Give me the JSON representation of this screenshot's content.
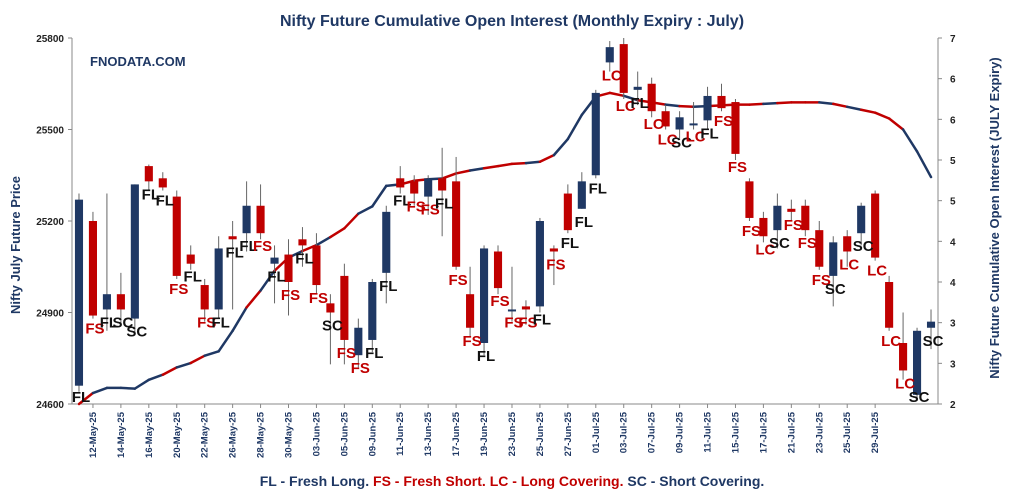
{
  "chart_data": {
    "type": "candlestick+line",
    "title": "Nifty Future Cumulative Open Interest (Monthly Expiry : July)",
    "watermark": "FNODATA.COM",
    "ylabel_left": "Nifty July Future Price",
    "ylabel_right": "Nifty Future Cumulative Open Interest (JULY Expiry)",
    "ylim_left": [
      24600,
      25800
    ],
    "yticks_left": [
      "24600",
      "24900",
      "25200",
      "25500",
      "25800"
    ],
    "ylim_right": [
      2,
      7
    ],
    "yticks_right": [
      "2",
      "3",
      "3",
      "4",
      "4",
      "5",
      "5",
      "6",
      "6",
      "7"
    ],
    "xtick_labels": [
      "12-May-25",
      "14-May-25",
      "16-May-25",
      "20-May-25",
      "22-May-25",
      "26-May-25",
      "28-May-25",
      "30-May-25",
      "03-Jun-25",
      "05-Jun-25",
      "09-Jun-25",
      "11-Jun-25",
      "13-Jun-25",
      "17-Jun-25",
      "19-Jun-25",
      "23-Jun-25",
      "25-Jun-25",
      "27-Jun-25",
      "01-Jul-25",
      "03-Jul-25",
      "07-Jul-25",
      "09-Jul-25",
      "11-Jul-25",
      "15-Jul-25",
      "17-Jul-25",
      "21-Jul-25",
      "23-Jul-25",
      "25-Jul-25",
      "29-Jul-25"
    ],
    "candles": [
      {
        "o": 24660,
        "h": 25290,
        "l": 24640,
        "c": 25270,
        "tag": "FL"
      },
      {
        "o": 25200,
        "h": 25230,
        "l": 24880,
        "c": 24890,
        "tag": "FS"
      },
      {
        "o": 24910,
        "h": 25290,
        "l": 24840,
        "c": 24960,
        "tag": "FL"
      },
      {
        "o": 24960,
        "h": 25030,
        "l": 24860,
        "c": 24910,
        "tag": "SC"
      },
      {
        "o": 24880,
        "h": 25320,
        "l": 24830,
        "c": 25320,
        "tag": "SC"
      },
      {
        "o": 25380,
        "h": 25385,
        "l": 25300,
        "c": 25330,
        "tag": "FL"
      },
      {
        "o": 25340,
        "h": 25360,
        "l": 25300,
        "c": 25310,
        "tag": "FL"
      },
      {
        "o": 25280,
        "h": 25300,
        "l": 25010,
        "c": 25020,
        "tag": "FS"
      },
      {
        "o": 25090,
        "h": 25120,
        "l": 25040,
        "c": 25060,
        "tag": "FL"
      },
      {
        "o": 24990,
        "h": 25010,
        "l": 24870,
        "c": 24910,
        "tag": "FS"
      },
      {
        "o": 24910,
        "h": 25150,
        "l": 24880,
        "c": 25110,
        "tag": "FL"
      },
      {
        "o": 25150,
        "h": 25200,
        "l": 24910,
        "c": 25140,
        "tag": "FL"
      },
      {
        "o": 25160,
        "h": 25330,
        "l": 25100,
        "c": 25250,
        "tag": "FL"
      },
      {
        "o": 25250,
        "h": 25320,
        "l": 25140,
        "c": 25160,
        "tag": "FS"
      },
      {
        "o": 25060,
        "h": 25120,
        "l": 24930,
        "c": 25080,
        "tag": "FL"
      },
      {
        "o": 25090,
        "h": 25140,
        "l": 24890,
        "c": 25000,
        "tag": "FS"
      },
      {
        "o": 25140,
        "h": 25180,
        "l": 25050,
        "c": 25120,
        "tag": "FL"
      },
      {
        "o": 25120,
        "h": 25160,
        "l": 24960,
        "c": 24990,
        "tag": "FS"
      },
      {
        "o": 24930,
        "h": 24960,
        "l": 24730,
        "c": 24900,
        "tag": "SC"
      },
      {
        "o": 25020,
        "h": 25060,
        "l": 24730,
        "c": 24810,
        "tag": "FS"
      },
      {
        "o": 24760,
        "h": 24880,
        "l": 24720,
        "c": 24850,
        "tag": "FS"
      },
      {
        "o": 24810,
        "h": 25010,
        "l": 24770,
        "c": 25000,
        "tag": "FL"
      },
      {
        "o": 25030,
        "h": 25250,
        "l": 24930,
        "c": 25230,
        "tag": "FL"
      },
      {
        "o": 25340,
        "h": 25380,
        "l": 25290,
        "c": 25310,
        "tag": "FL"
      },
      {
        "o": 25330,
        "h": 25350,
        "l": 25250,
        "c": 25290,
        "tag": "FS"
      },
      {
        "o": 25280,
        "h": 25350,
        "l": 25220,
        "c": 25340,
        "tag": "FS"
      },
      {
        "o": 25340,
        "h": 25440,
        "l": 25150,
        "c": 25300,
        "tag": "FL"
      },
      {
        "o": 25330,
        "h": 25410,
        "l": 25040,
        "c": 25050,
        "tag": "FS"
      },
      {
        "o": 24960,
        "h": 25050,
        "l": 24820,
        "c": 24850,
        "tag": "FS"
      },
      {
        "o": 24800,
        "h": 25120,
        "l": 24760,
        "c": 25110,
        "tag": "FL"
      },
      {
        "o": 25100,
        "h": 25120,
        "l": 24960,
        "c": 24980,
        "tag": "FS"
      },
      {
        "o": 24910,
        "h": 25050,
        "l": 24870,
        "c": 24910,
        "tag": "FS"
      },
      {
        "o": 24920,
        "h": 24940,
        "l": 24860,
        "c": 24910,
        "tag": "FS"
      },
      {
        "o": 24920,
        "h": 25210,
        "l": 24900,
        "c": 25200,
        "tag": "FL"
      },
      {
        "o": 25110,
        "h": 25120,
        "l": 24990,
        "c": 25100,
        "tag": "FS"
      },
      {
        "o": 25290,
        "h": 25320,
        "l": 25160,
        "c": 25170,
        "tag": "FL"
      },
      {
        "o": 25240,
        "h": 25360,
        "l": 25240,
        "c": 25330,
        "tag": "FL"
      },
      {
        "o": 25350,
        "h": 25630,
        "l": 25340,
        "c": 25620,
        "tag": "FL"
      },
      {
        "o": 25720,
        "h": 25790,
        "l": 25690,
        "c": 25770,
        "tag": "LC"
      },
      {
        "o": 25780,
        "h": 25800,
        "l": 25600,
        "c": 25620,
        "tag": "LC"
      },
      {
        "o": 25630,
        "h": 25690,
        "l": 25580,
        "c": 25640,
        "tag": "FL"
      },
      {
        "o": 25650,
        "h": 25670,
        "l": 25540,
        "c": 25560,
        "tag": "LC"
      },
      {
        "o": 25560,
        "h": 25580,
        "l": 25500,
        "c": 25510,
        "tag": "LC"
      },
      {
        "o": 25500,
        "h": 25560,
        "l": 25470,
        "c": 25540,
        "tag": "SC"
      },
      {
        "o": 25520,
        "h": 25590,
        "l": 25500,
        "c": 25520,
        "tag": "LC"
      },
      {
        "o": 25530,
        "h": 25640,
        "l": 25500,
        "c": 25610,
        "tag": "FL"
      },
      {
        "o": 25610,
        "h": 25650,
        "l": 25560,
        "c": 25570,
        "tag": "FS"
      },
      {
        "o": 25590,
        "h": 25600,
        "l": 25400,
        "c": 25420,
        "tag": "FS"
      },
      {
        "o": 25330,
        "h": 25340,
        "l": 25200,
        "c": 25210,
        "tag": "FS"
      },
      {
        "o": 25210,
        "h": 25230,
        "l": 25130,
        "c": 25150,
        "tag": "LC"
      },
      {
        "o": 25170,
        "h": 25290,
        "l": 25110,
        "c": 25250,
        "tag": "SC"
      },
      {
        "o": 25240,
        "h": 25270,
        "l": 25200,
        "c": 25230,
        "tag": "FS"
      },
      {
        "o": 25250,
        "h": 25270,
        "l": 25150,
        "c": 25170,
        "tag": "FS"
      },
      {
        "o": 25170,
        "h": 25200,
        "l": 25040,
        "c": 25050,
        "tag": "FS"
      },
      {
        "o": 25020,
        "h": 25150,
        "l": 24920,
        "c": 25130,
        "tag": "SC"
      },
      {
        "o": 25150,
        "h": 25170,
        "l": 25050,
        "c": 25100,
        "tag": "LC"
      },
      {
        "o": 25160,
        "h": 25260,
        "l": 25120,
        "c": 25250,
        "tag": "SC"
      },
      {
        "o": 25290,
        "h": 25300,
        "l": 25070,
        "c": 25080,
        "tag": "LC"
      },
      {
        "o": 25000,
        "h": 25020,
        "l": 24840,
        "c": 24850,
        "tag": "LC"
      },
      {
        "o": 24800,
        "h": 24900,
        "l": 24680,
        "c": 24710,
        "tag": "LC"
      },
      {
        "o": 24630,
        "h": 24850,
        "l": 24620,
        "c": 24840,
        "tag": "SC"
      },
      {
        "o": 24850,
        "h": 24910,
        "l": 24780,
        "c": 24870,
        "tag": "SC"
      }
    ],
    "oi_series": [
      {
        "t": 0,
        "oi": 2.0,
        "c": "FL"
      },
      {
        "t": 1,
        "oi": 2.15,
        "c": "FS"
      },
      {
        "t": 2,
        "oi": 2.22,
        "c": "FL"
      },
      {
        "t": 3,
        "oi": 2.22,
        "c": "SC"
      },
      {
        "t": 4,
        "oi": 2.21,
        "c": "SC"
      },
      {
        "t": 5,
        "oi": 2.33,
        "c": "FL"
      },
      {
        "t": 6,
        "oi": 2.4,
        "c": "FL"
      },
      {
        "t": 7,
        "oi": 2.5,
        "c": "FS"
      },
      {
        "t": 8,
        "oi": 2.56,
        "c": "FL"
      },
      {
        "t": 9,
        "oi": 2.66,
        "c": "FS"
      },
      {
        "t": 10,
        "oi": 2.72,
        "c": "FL"
      },
      {
        "t": 11,
        "oi": 3.0,
        "c": "FL"
      },
      {
        "t": 12,
        "oi": 3.32,
        "c": "FL"
      },
      {
        "t": 13,
        "oi": 3.55,
        "c": "FS"
      },
      {
        "t": 14,
        "oi": 3.82,
        "c": "FL"
      },
      {
        "t": 15,
        "oi": 4.0,
        "c": "FS"
      },
      {
        "t": 16,
        "oi": 4.09,
        "c": "FL"
      },
      {
        "t": 17,
        "oi": 4.17,
        "c": "FS"
      },
      {
        "t": 18,
        "oi": 4.28,
        "c": "SC"
      },
      {
        "t": 19,
        "oi": 4.4,
        "c": "FS"
      },
      {
        "t": 20,
        "oi": 4.6,
        "c": "FS"
      },
      {
        "t": 21,
        "oi": 4.7,
        "c": "FL"
      },
      {
        "t": 22,
        "oi": 4.98,
        "c": "FL"
      },
      {
        "t": 23,
        "oi": 5.0,
        "c": "FL"
      },
      {
        "t": 24,
        "oi": 5.05,
        "c": "FS"
      },
      {
        "t": 25,
        "oi": 5.07,
        "c": "FS"
      },
      {
        "t": 26,
        "oi": 5.08,
        "c": "FL"
      },
      {
        "t": 27,
        "oi": 5.15,
        "c": "FS"
      },
      {
        "t": 28,
        "oi": 5.19,
        "c": "FS"
      },
      {
        "t": 29,
        "oi": 5.22,
        "c": "FL"
      },
      {
        "t": 30,
        "oi": 5.25,
        "c": "FS"
      },
      {
        "t": 31,
        "oi": 5.28,
        "c": "FS"
      },
      {
        "t": 32,
        "oi": 5.29,
        "c": "FS"
      },
      {
        "t": 33,
        "oi": 5.31,
        "c": "FL"
      },
      {
        "t": 34,
        "oi": 5.4,
        "c": "FS"
      },
      {
        "t": 35,
        "oi": 5.62,
        "c": "FL"
      },
      {
        "t": 36,
        "oi": 5.95,
        "c": "FL"
      },
      {
        "t": 37,
        "oi": 6.2,
        "c": "FL"
      },
      {
        "t": 38,
        "oi": 6.25,
        "c": "LC"
      },
      {
        "t": 39,
        "oi": 6.21,
        "c": "LC"
      },
      {
        "t": 40,
        "oi": 6.15,
        "c": "FL"
      },
      {
        "t": 41,
        "oi": 6.12,
        "c": "LC"
      },
      {
        "t": 42,
        "oi": 6.09,
        "c": "LC"
      },
      {
        "t": 43,
        "oi": 6.07,
        "c": "SC"
      },
      {
        "t": 44,
        "oi": 6.06,
        "c": "LC"
      },
      {
        "t": 45,
        "oi": 6.07,
        "c": "FL"
      },
      {
        "t": 46,
        "oi": 6.08,
        "c": "FS"
      },
      {
        "t": 47,
        "oi": 6.09,
        "c": "FS"
      },
      {
        "t": 48,
        "oi": 6.09,
        "c": "FS"
      },
      {
        "t": 49,
        "oi": 6.1,
        "c": "LC"
      },
      {
        "t": 50,
        "oi": 6.11,
        "c": "SC"
      },
      {
        "t": 51,
        "oi": 6.12,
        "c": "FS"
      },
      {
        "t": 52,
        "oi": 6.12,
        "c": "FS"
      },
      {
        "t": 53,
        "oi": 6.12,
        "c": "FS"
      },
      {
        "t": 54,
        "oi": 6.1,
        "c": "SC"
      },
      {
        "t": 55,
        "oi": 6.06,
        "c": "LC"
      },
      {
        "t": 56,
        "oi": 6.02,
        "c": "SC"
      },
      {
        "t": 57,
        "oi": 5.98,
        "c": "LC"
      },
      {
        "t": 58,
        "oi": 5.9,
        "c": "LC"
      },
      {
        "t": 59,
        "oi": 5.75,
        "c": "LC"
      },
      {
        "t": 60,
        "oi": 5.45,
        "c": "SC"
      },
      {
        "t": 61,
        "oi": 5.1,
        "c": "SC"
      }
    ],
    "legend": [
      {
        "text": "FL - Fresh Long.",
        "color": "#1f3864"
      },
      {
        "text": "FS - Fresh Short.",
        "color": "#c00000"
      },
      {
        "text": "LC - Long Covering.",
        "color": "#c00000"
      },
      {
        "text": "SC - Short Covering.",
        "color": "#1f3864"
      }
    ],
    "colors": {
      "up": "#1f3864",
      "down": "#c00000",
      "title": "#1f3864",
      "watermark": "#1f3864"
    }
  }
}
